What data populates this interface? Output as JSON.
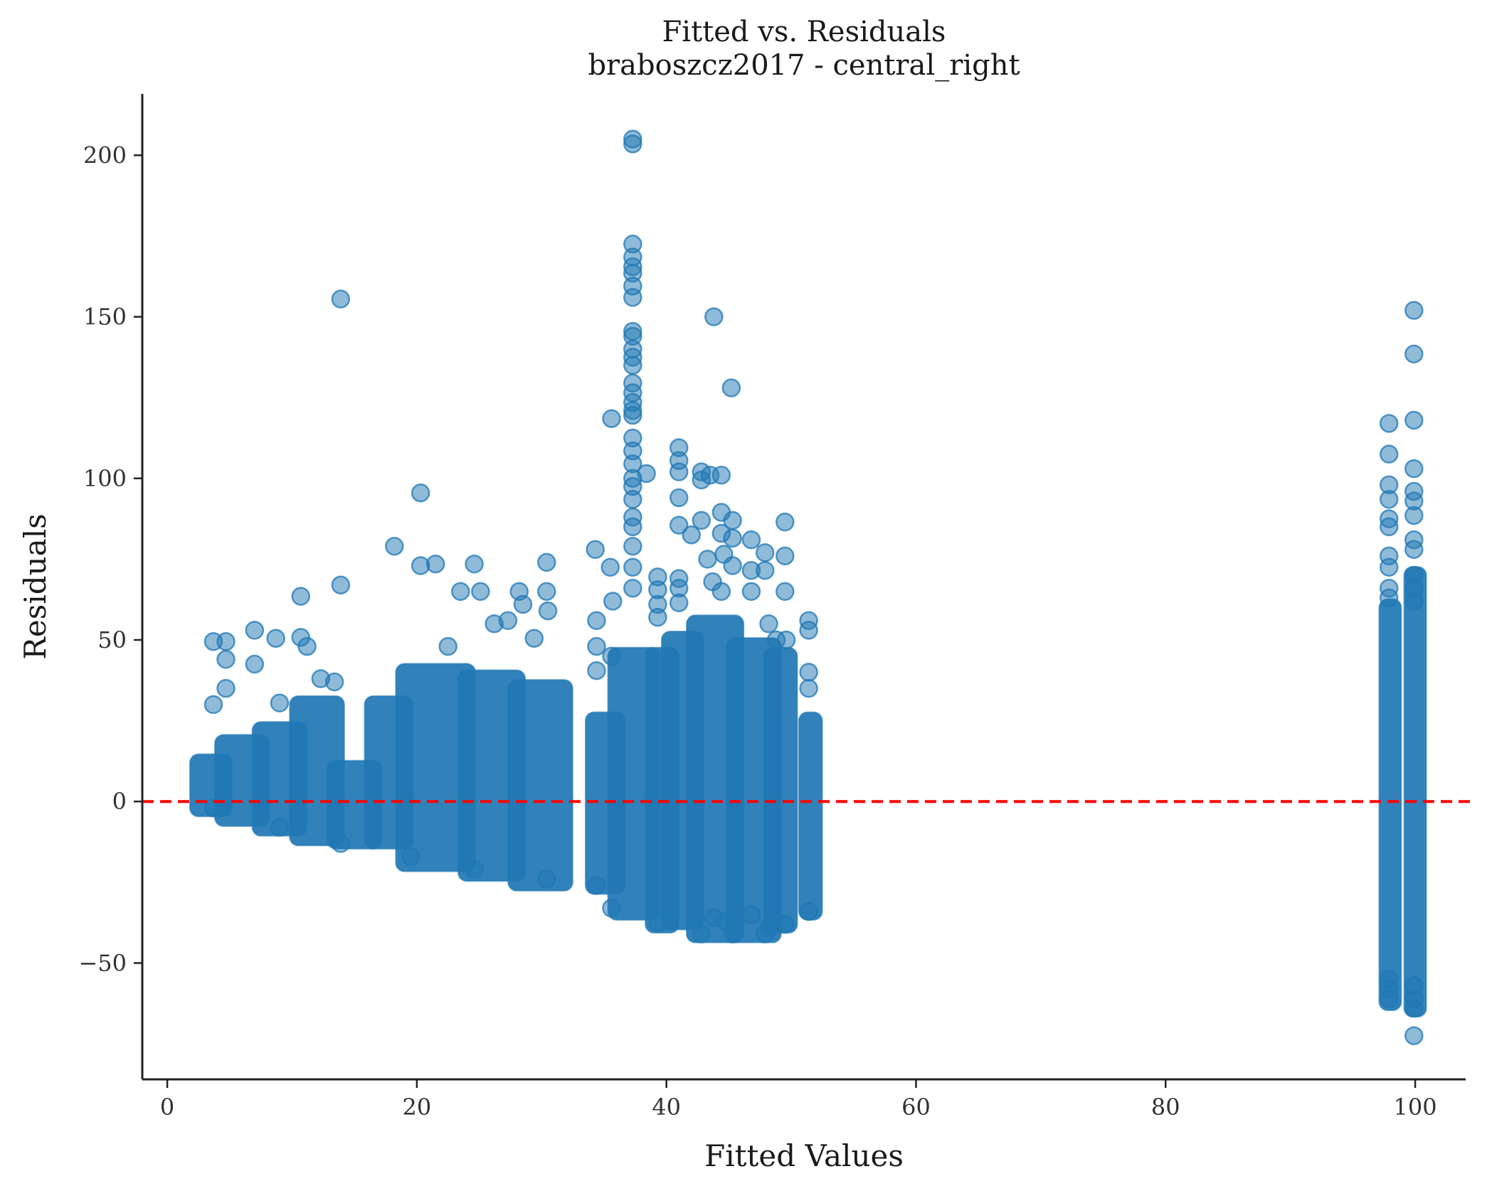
{
  "chart_data": {
    "type": "scatter",
    "title": "Fitted vs. Residuals",
    "subtitle": "braboszcz2017 - central_right",
    "xlabel": "Fitted Values",
    "ylabel": "Residuals",
    "xlim": [
      -2,
      104.5
    ],
    "ylim": [
      -86,
      219
    ],
    "xticks": [
      0,
      20,
      40,
      60,
      80,
      100
    ],
    "yticks": [
      -50,
      0,
      50,
      100,
      150,
      200
    ],
    "xtick_labels": [
      "0",
      "20",
      "40",
      "60",
      "80",
      "100"
    ],
    "ytick_labels": [
      "−50",
      "0",
      "50",
      "100",
      "150",
      "200"
    ],
    "grid": false,
    "point_color": "#1f77b4",
    "point_alpha": 0.5,
    "reference_line": {
      "y": 0,
      "style": "dashed",
      "color": "#ff0000"
    },
    "clusters": [
      {
        "x": [
          2.5,
          4.5
        ],
        "y_range": [
          -2,
          12
        ]
      },
      {
        "x": [
          4.5,
          7.5
        ],
        "y_range": [
          -5,
          18
        ]
      },
      {
        "x": [
          7.5,
          10.5
        ],
        "y_range": [
          -8,
          22
        ]
      },
      {
        "x": [
          10.5,
          13.5
        ],
        "y_range": [
          -11,
          30
        ]
      },
      {
        "x": [
          13.5,
          16.5
        ],
        "y_range": [
          -12,
          10
        ]
      },
      {
        "x": [
          16.5,
          19
        ],
        "y_range": [
          -12,
          30
        ]
      },
      {
        "x": [
          19,
          24
        ],
        "y_range": [
          -19,
          40
        ]
      },
      {
        "x": [
          24,
          28
        ],
        "y_range": [
          -22,
          38
        ]
      },
      {
        "x": [
          28,
          31.8
        ],
        "y_range": [
          -25,
          35
        ]
      },
      {
        "x": [
          34.2,
          36
        ],
        "y_range": [
          -26,
          25
        ]
      },
      {
        "x": [
          36,
          38.8
        ],
        "y_range": [
          -34,
          45
        ]
      },
      {
        "x": [
          39,
          40.3
        ],
        "y_range": [
          -38,
          45
        ]
      },
      {
        "x": [
          40.3,
          42.3
        ],
        "y_range": [
          -37,
          50
        ]
      },
      {
        "x": [
          42.3,
          45.5
        ],
        "y_range": [
          -41,
          55
        ]
      },
      {
        "x": [
          45.5,
          48.5
        ],
        "y_range": [
          -41,
          48
        ]
      },
      {
        "x": [
          48.5,
          49.8
        ],
        "y_range": [
          -38,
          45
        ]
      },
      {
        "x": [
          51.3,
          51.8
        ],
        "y_range": [
          -34,
          25
        ]
      },
      {
        "x": [
          97.8,
          98.2
        ],
        "y_range": [
          -62,
          60
        ]
      },
      {
        "x": [
          99.8,
          100.2
        ],
        "y_range": [
          -64,
          70
        ]
      }
    ],
    "points": [
      [
        13.9,
        155.5
      ],
      [
        20.3,
        95.5
      ],
      [
        18.2,
        79
      ],
      [
        13.9,
        67
      ],
      [
        10.7,
        63.5
      ],
      [
        21.5,
        73.5
      ],
      [
        20.3,
        73
      ],
      [
        3.7,
        49.5
      ],
      [
        4.7,
        49.5
      ],
      [
        7,
        53
      ],
      [
        8.7,
        50.5
      ],
      [
        10.7,
        50.8
      ],
      [
        11.2,
        48
      ],
      [
        4.7,
        44
      ],
      [
        7,
        42.5
      ],
      [
        3.7,
        30
      ],
      [
        4.7,
        35
      ],
      [
        9,
        30.5
      ],
      [
        12.3,
        38
      ],
      [
        13.4,
        37
      ],
      [
        22.5,
        48
      ],
      [
        23.5,
        65
      ],
      [
        24.6,
        73.5
      ],
      [
        25.1,
        65
      ],
      [
        26.2,
        55
      ],
      [
        27.3,
        56
      ],
      [
        28.2,
        65
      ],
      [
        28.5,
        61
      ],
      [
        29.4,
        50.5
      ],
      [
        30.4,
        74
      ],
      [
        30.4,
        65
      ],
      [
        30.5,
        59
      ],
      [
        34.3,
        78
      ],
      [
        35.5,
        72.5
      ],
      [
        35.7,
        62
      ],
      [
        35.6,
        118.5
      ],
      [
        34.4,
        56
      ],
      [
        34.4,
        48
      ],
      [
        34.4,
        40.5
      ],
      [
        35.6,
        45
      ],
      [
        37.3,
        205
      ],
      [
        37.3,
        203.5
      ],
      [
        37.3,
        172.5
      ],
      [
        37.3,
        168.5
      ],
      [
        37.3,
        165.5
      ],
      [
        37.3,
        163.5
      ],
      [
        37.3,
        159.5
      ],
      [
        37.3,
        156
      ],
      [
        37.3,
        145.5
      ],
      [
        37.3,
        144
      ],
      [
        37.3,
        140
      ],
      [
        37.3,
        137.5
      ],
      [
        37.3,
        135
      ],
      [
        37.3,
        129.5
      ],
      [
        37.3,
        126.5
      ],
      [
        37.3,
        123.5
      ],
      [
        37.3,
        121
      ],
      [
        37.3,
        119.5
      ],
      [
        37.3,
        112.5
      ],
      [
        37.3,
        108.5
      ],
      [
        37.3,
        104.5
      ],
      [
        37.3,
        100
      ],
      [
        37.3,
        97.5
      ],
      [
        37.3,
        93.5
      ],
      [
        37.3,
        88
      ],
      [
        37.3,
        85
      ],
      [
        37.3,
        79
      ],
      [
        37.3,
        72.5
      ],
      [
        37.3,
        66
      ],
      [
        38.4,
        101.5
      ],
      [
        39.3,
        69.5
      ],
      [
        39.3,
        65.5
      ],
      [
        39.3,
        61
      ],
      [
        39.3,
        57
      ],
      [
        41,
        109.5
      ],
      [
        41,
        105.5
      ],
      [
        41,
        102
      ],
      [
        41,
        94
      ],
      [
        41,
        85.5
      ],
      [
        41,
        69
      ],
      [
        41,
        66
      ],
      [
        41,
        61.5
      ],
      [
        42,
        82.5
      ],
      [
        42.8,
        102
      ],
      [
        42.8,
        99.5
      ],
      [
        42.8,
        87
      ],
      [
        43.5,
        101
      ],
      [
        43.8,
        150
      ],
      [
        44.4,
        101
      ],
      [
        44.4,
        89.5
      ],
      [
        44.4,
        83
      ],
      [
        44.6,
        76.5
      ],
      [
        45.2,
        128
      ],
      [
        45.3,
        87
      ],
      [
        45.3,
        81.5
      ],
      [
        45.3,
        73
      ],
      [
        43.3,
        75
      ],
      [
        43.7,
        68
      ],
      [
        44.4,
        65
      ],
      [
        46.8,
        81
      ],
      [
        46.8,
        71.5
      ],
      [
        46.8,
        65
      ],
      [
        47.9,
        77
      ],
      [
        47.9,
        71.5
      ],
      [
        48.2,
        55
      ],
      [
        49.5,
        86.5
      ],
      [
        49.5,
        76
      ],
      [
        49.5,
        65
      ],
      [
        48.8,
        50
      ],
      [
        49.6,
        50
      ],
      [
        51.4,
        56
      ],
      [
        51.4,
        53
      ],
      [
        51.4,
        40
      ],
      [
        51.4,
        35
      ],
      [
        97.9,
        117
      ],
      [
        97.9,
        107.5
      ],
      [
        97.9,
        98
      ],
      [
        97.9,
        93.5
      ],
      [
        97.9,
        87.5
      ],
      [
        97.9,
        85
      ],
      [
        97.9,
        76
      ],
      [
        97.9,
        72.5
      ],
      [
        97.9,
        66
      ],
      [
        97.9,
        63
      ],
      [
        99.9,
        152
      ],
      [
        99.9,
        138.5
      ],
      [
        99.9,
        118
      ],
      [
        99.9,
        103
      ],
      [
        99.9,
        96
      ],
      [
        99.9,
        93
      ],
      [
        99.9,
        88.5
      ],
      [
        99.9,
        81
      ],
      [
        99.9,
        78
      ],
      [
        99.9,
        70
      ],
      [
        99.9,
        66
      ],
      [
        99.9,
        62
      ],
      [
        3.7,
        -2
      ],
      [
        9,
        -8
      ],
      [
        13.9,
        -13
      ],
      [
        19.5,
        -17
      ],
      [
        24.6,
        -21
      ],
      [
        30.4,
        -24
      ],
      [
        34.4,
        -26
      ],
      [
        35.6,
        -33
      ],
      [
        39.3,
        -37.5
      ],
      [
        42.8,
        -41
      ],
      [
        45.3,
        -41
      ],
      [
        47.9,
        -41
      ],
      [
        48.3,
        -39
      ],
      [
        49.5,
        -38
      ],
      [
        51.4,
        -34
      ],
      [
        43.8,
        -36
      ],
      [
        44.7,
        -37
      ],
      [
        46.8,
        -35
      ],
      [
        97.9,
        -61
      ],
      [
        97.9,
        -58
      ],
      [
        97.9,
        -55
      ],
      [
        99.9,
        -72.5
      ],
      [
        99.9,
        -64
      ],
      [
        99.9,
        -61
      ],
      [
        99.9,
        -57
      ]
    ]
  }
}
